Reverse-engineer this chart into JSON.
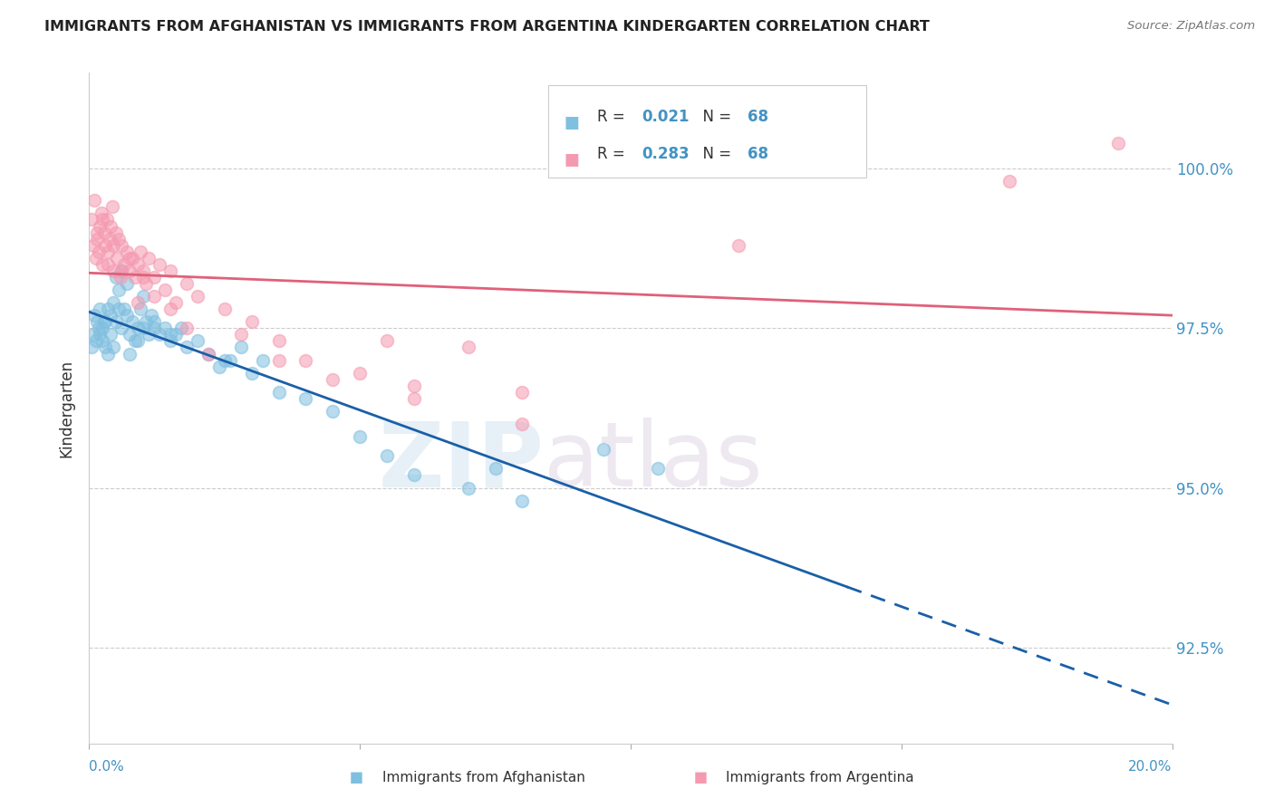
{
  "title": "IMMIGRANTS FROM AFGHANISTAN VS IMMIGRANTS FROM ARGENTINA KINDERGARTEN CORRELATION CHART",
  "source": "Source: ZipAtlas.com",
  "ylabel": "Kindergarten",
  "xmin": 0.0,
  "xmax": 20.0,
  "ymin": 91.0,
  "ymax": 101.5,
  "ytick_values": [
    92.5,
    95.0,
    97.5,
    100.0
  ],
  "xtick_values": [
    0,
    5,
    10,
    15,
    20
  ],
  "legend_blue_label": "Immigrants from Afghanistan",
  "legend_pink_label": "Immigrants from Argentina",
  "R_blue": 0.021,
  "N_blue": 68,
  "R_pink": 0.283,
  "N_pink": 68,
  "color_blue": "#7fbfdf",
  "color_pink": "#f599b0",
  "color_line_blue": "#1a5fa8",
  "color_line_pink": "#e0607a",
  "color_yaxis": "#4393c3",
  "blue_x": [
    0.1,
    0.15,
    0.2,
    0.2,
    0.25,
    0.25,
    0.3,
    0.3,
    0.35,
    0.35,
    0.4,
    0.4,
    0.45,
    0.5,
    0.5,
    0.55,
    0.6,
    0.6,
    0.65,
    0.7,
    0.7,
    0.75,
    0.8,
    0.85,
    0.9,
    0.95,
    1.0,
    1.0,
    1.05,
    1.1,
    1.15,
    1.2,
    1.3,
    1.4,
    1.5,
    1.6,
    1.7,
    1.8,
    2.0,
    2.2,
    2.4,
    2.6,
    2.8,
    3.0,
    3.2,
    3.5,
    4.0,
    4.5,
    5.0,
    5.5,
    6.0,
    7.0,
    7.5,
    8.0,
    9.5,
    10.5,
    0.05,
    0.08,
    0.12,
    0.18,
    0.28,
    0.45,
    0.55,
    0.75,
    0.9,
    1.2,
    1.5,
    2.5
  ],
  "blue_y": [
    97.7,
    97.6,
    97.8,
    97.4,
    97.5,
    97.3,
    97.6,
    97.2,
    97.8,
    97.1,
    97.7,
    97.4,
    97.9,
    98.3,
    97.6,
    98.1,
    97.5,
    98.4,
    97.8,
    97.7,
    98.2,
    97.4,
    97.6,
    97.3,
    97.5,
    97.8,
    98.0,
    97.5,
    97.6,
    97.4,
    97.7,
    97.5,
    97.4,
    97.5,
    97.3,
    97.4,
    97.5,
    97.2,
    97.3,
    97.1,
    96.9,
    97.0,
    97.2,
    96.8,
    97.0,
    96.5,
    96.4,
    96.2,
    95.8,
    95.5,
    95.2,
    95.0,
    95.3,
    94.8,
    95.6,
    95.3,
    97.2,
    97.4,
    97.3,
    97.5,
    97.6,
    97.2,
    97.8,
    97.1,
    97.3,
    97.6,
    97.4,
    97.0
  ],
  "pink_x": [
    0.05,
    0.08,
    0.1,
    0.12,
    0.15,
    0.18,
    0.2,
    0.22,
    0.25,
    0.28,
    0.3,
    0.32,
    0.35,
    0.38,
    0.4,
    0.42,
    0.45,
    0.5,
    0.52,
    0.55,
    0.58,
    0.6,
    0.65,
    0.7,
    0.75,
    0.8,
    0.85,
    0.9,
    0.95,
    1.0,
    1.05,
    1.1,
    1.2,
    1.3,
    1.4,
    1.5,
    1.6,
    1.8,
    2.0,
    2.5,
    3.0,
    3.5,
    4.0,
    5.0,
    5.5,
    6.0,
    7.0,
    8.0,
    0.15,
    0.25,
    0.35,
    0.45,
    0.6,
    0.75,
    0.9,
    1.0,
    1.2,
    1.5,
    1.8,
    2.2,
    2.8,
    3.5,
    4.5,
    6.0,
    8.0,
    12.0,
    17.0,
    19.0
  ],
  "pink_y": [
    99.2,
    98.8,
    99.5,
    98.6,
    99.0,
    98.7,
    99.1,
    99.3,
    98.5,
    99.0,
    98.8,
    99.2,
    98.5,
    98.9,
    99.1,
    99.4,
    98.4,
    99.0,
    98.6,
    98.9,
    98.3,
    98.8,
    98.5,
    98.7,
    98.4,
    98.6,
    98.3,
    98.5,
    98.7,
    98.4,
    98.2,
    98.6,
    98.3,
    98.5,
    98.1,
    98.4,
    97.9,
    98.2,
    98.0,
    97.8,
    97.6,
    97.3,
    97.0,
    96.8,
    97.3,
    96.6,
    97.2,
    96.5,
    98.9,
    99.2,
    98.7,
    98.8,
    98.4,
    98.6,
    97.9,
    98.3,
    98.0,
    97.8,
    97.5,
    97.1,
    97.4,
    97.0,
    96.7,
    96.4,
    96.0,
    98.8,
    99.8,
    100.4
  ]
}
